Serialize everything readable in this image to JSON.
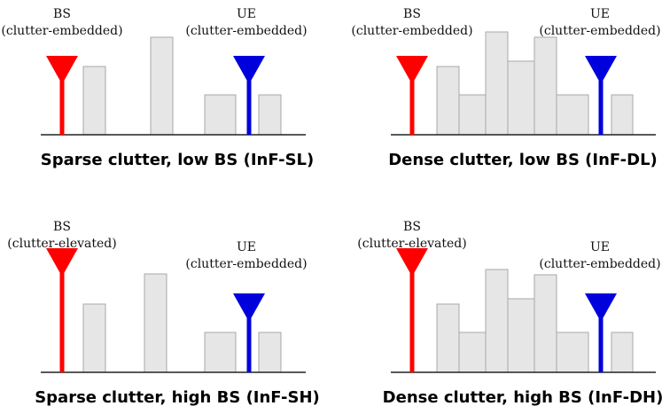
{
  "panels": [
    {
      "caption": "Sparse clutter, low BS (InF-SL)",
      "bs": {
        "label": "BS",
        "note": "(clutter-embedded)"
      },
      "ue": {
        "label": "UE",
        "note": "(clutter-embedded)"
      }
    },
    {
      "caption": "Dense clutter, low BS (InF-DL)",
      "bs": {
        "label": "BS",
        "note": "(clutter-embedded)"
      },
      "ue": {
        "label": "UE",
        "note": "(clutter-embedded)"
      }
    },
    {
      "caption": "Sparse clutter, high BS (InF-SH)",
      "bs": {
        "label": "BS",
        "note": "(clutter-elevated)"
      },
      "ue": {
        "label": "UE",
        "note": "(clutter-embedded)"
      }
    },
    {
      "caption": "Dense clutter, high BS (InF-DH)",
      "bs": {
        "label": "BS",
        "note": "(clutter-elevated)"
      },
      "ue": {
        "label": "UE",
        "note": "(clutter-embedded)"
      }
    }
  ]
}
